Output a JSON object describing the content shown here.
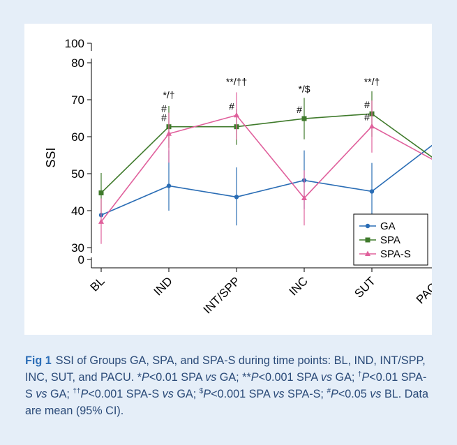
{
  "chart_data": {
    "type": "line",
    "ylabel": "SSI",
    "xlabel": "",
    "categories": [
      "BL",
      "IND",
      "INT/SPP",
      "INC",
      "SUT",
      "PACU"
    ],
    "y_ticks_lower": [
      30,
      40,
      50,
      60,
      70,
      80
    ],
    "y_ticks_upper": [
      0,
      100
    ],
    "y_axis_break": true,
    "ylim": [
      30,
      80
    ],
    "grid": false,
    "legend_position": "bottom-right",
    "series": [
      {
        "name": "GA",
        "color": "#2a6db5",
        "marker": "circle",
        "values": [
          38.8,
          46.7,
          43.7,
          48.2,
          45.2,
          59.2
        ],
        "ci_low": [
          38.8,
          40.0,
          36.0,
          40.4,
          37.6,
          59.2
        ],
        "ci_high": [
          38.8,
          56.3,
          51.7,
          56.3,
          52.9,
          59.2
        ]
      },
      {
        "name": "SPA",
        "color": "#3f7a2b",
        "marker": "square",
        "values": [
          44.8,
          62.7,
          62.7,
          64.9,
          66.2,
          53.0
        ],
        "ci_low": [
          39.0,
          57.0,
          57.8,
          59.3,
          60.0,
          47.8
        ],
        "ci_high": [
          50.2,
          68.3,
          67.5,
          70.5,
          72.3,
          68.0
        ]
      },
      {
        "name": "SPA-S",
        "color": "#e0609c",
        "marker": "triangle",
        "values": [
          37.0,
          60.8,
          65.8,
          43.4,
          62.8,
          52.8
        ],
        "ci_low": [
          31.0,
          53.0,
          59.2,
          36.0,
          55.7,
          45.8
        ],
        "ci_high": [
          43.3,
          66.5,
          72.0,
          50.9,
          69.8,
          64.9
        ]
      }
    ],
    "annotations": [
      {
        "text": "*/†",
        "category": "IND",
        "y": 70.4
      },
      {
        "text": "**/††",
        "category": "INT/SPP",
        "y": 74.0
      },
      {
        "text": "*/$",
        "category": "INC",
        "y": 72.0
      },
      {
        "text": "**/†",
        "category": "SUT",
        "y": 74.0
      },
      {
        "text": "#",
        "category": "IND",
        "y": 64.2,
        "side": "left"
      },
      {
        "text": "#",
        "category": "IND",
        "y": 66.7,
        "side": "left"
      },
      {
        "text": "#",
        "category": "INT/SPP",
        "y": 67.3,
        "side": "left"
      },
      {
        "text": "#",
        "category": "INC",
        "y": 66.4,
        "side": "left"
      },
      {
        "text": "#",
        "category": "SUT",
        "y": 67.7,
        "side": "left"
      },
      {
        "text": "#",
        "category": "SUT",
        "y": 64.4,
        "side": "left"
      },
      {
        "text": "#",
        "category": "PACU",
        "y": 60.7,
        "side": "left"
      }
    ]
  },
  "caption": {
    "label": "Fig 1",
    "text_html": "SSI of Groups GA, SPA, and SPA-S during time points: BL, IND, INT/SPP, INC, SUT, and PACU. *<i>P</i>&lt;0.01 SPA <i>vs</i> GA; **<i>P</i>&lt;0.001 SPA <i>vs</i> GA; <sup>†</sup><i>P</i>&lt;0.01 SPA-S <i>vs</i> GA; <sup>††</sup><i>P</i>&lt;0.001 SPA-S <i>vs</i> GA; <sup>$</sup><i>P</i>&lt;0.001 SPA <i>vs</i> SPA-S; <sup>#</sup><i>P</i>&lt;0.05 <i>vs</i> BL. Data are mean (95% CI)."
  }
}
